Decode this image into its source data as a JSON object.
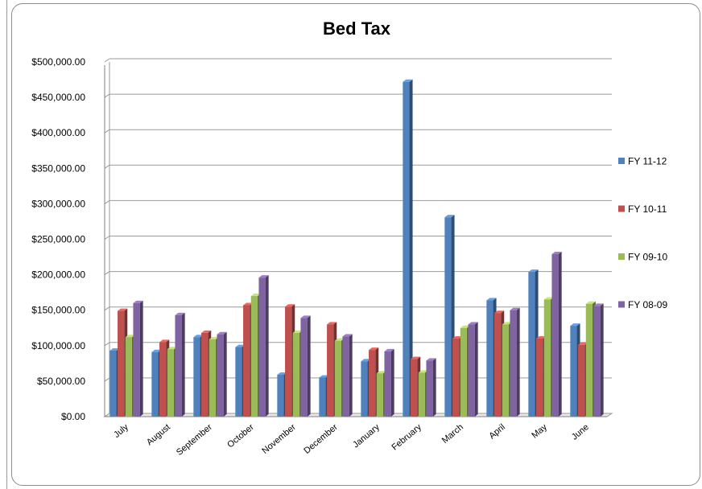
{
  "chart_data": {
    "type": "bar",
    "title": "Bed Tax",
    "xlabel": "",
    "ylabel": "",
    "categories": [
      "July",
      "August",
      "September",
      "October",
      "November",
      "December",
      "January",
      "February",
      "March",
      "April",
      "May",
      "June"
    ],
    "ytick_labels": [
      "$0.00",
      "$50,000.00",
      "$100,000.00",
      "$150,000.00",
      "$200,000.00",
      "$250,000.00",
      "$300,000.00",
      "$350,000.00",
      "$400,000.00",
      "$450,000.00",
      "$500,000.00"
    ],
    "ylim": [
      0,
      500000
    ],
    "grid": true,
    "legend_position": "right",
    "series": [
      {
        "name": "FY 11-12",
        "color": "#4f81bd",
        "values": [
          93000,
          91000,
          112000,
          98000,
          59000,
          55000,
          78000,
          472000,
          281000,
          164000,
          204000,
          128000
        ]
      },
      {
        "name": "FY 10-11",
        "color": "#c0504d",
        "values": [
          149000,
          105000,
          118000,
          157000,
          155000,
          130000,
          94000,
          81000,
          110000,
          146000,
          110000,
          101000
        ]
      },
      {
        "name": "FY 09-10",
        "color": "#9bbb59",
        "values": [
          112000,
          95000,
          109000,
          170000,
          118000,
          107000,
          61000,
          62000,
          125000,
          130000,
          165000,
          159000
        ]
      },
      {
        "name": "FY 08-09",
        "color": "#8064a2",
        "values": [
          160000,
          143000,
          116000,
          196000,
          139000,
          113000,
          92000,
          79000,
          130000,
          150000,
          229000,
          156000
        ]
      }
    ]
  }
}
